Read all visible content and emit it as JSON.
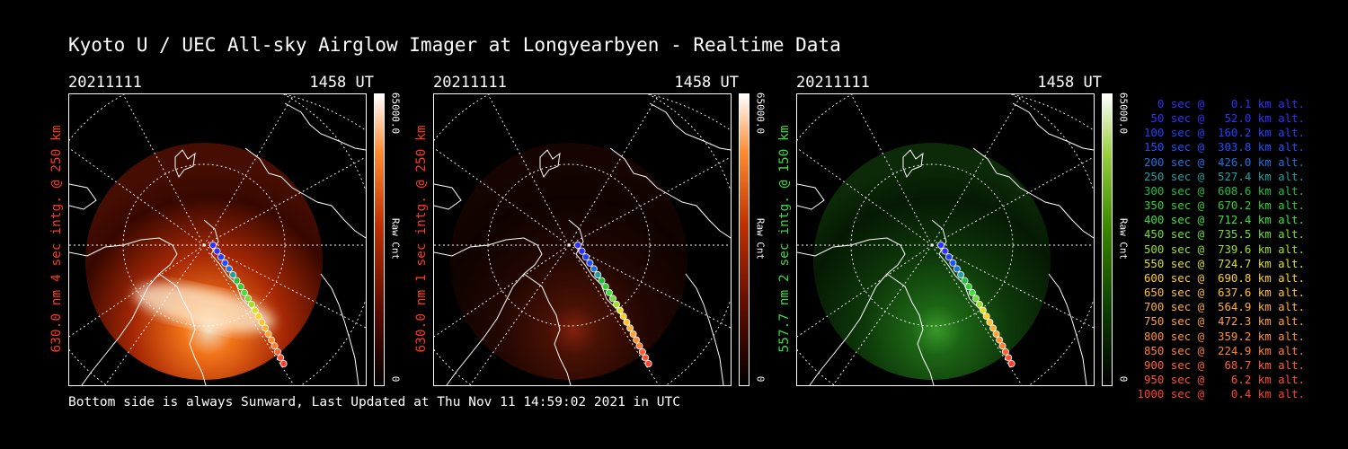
{
  "title": "Kyoto U / UEC All-sky Airglow Imager at Longyearbyen - Realtime Data",
  "footer": "Bottom side is always Sunward, Last Updated at Thu Nov 11 14:59:02 2021 in UTC",
  "panels": [
    {
      "date": "20211111",
      "time": "1458 UT",
      "side_label": "630.0 nm 4 sec intg. @ 250 km",
      "label_color": "#ff3a1a",
      "cbar_max": "65000.0",
      "cbar_unit": "Raw Cnt",
      "cbar_min": "0",
      "glow": "red"
    },
    {
      "date": "20211111",
      "time": "1458 UT",
      "side_label": "630.0 nm 1 sec intg. @ 250 km",
      "label_color": "#ff3a1a",
      "cbar_max": "65000.0",
      "cbar_unit": "Raw Cnt",
      "cbar_min": "0",
      "glow": "dimred"
    },
    {
      "date": "20211111",
      "time": "1458 UT",
      "side_label": "557.7 nm 2 sec intg. @ 150 km",
      "label_color": "#3cdc3c",
      "cbar_max": "65000.0",
      "cbar_unit": "Raw Cnt",
      "cbar_min": "0",
      "glow": "green"
    }
  ],
  "legend": [
    {
      "text": "   0 sec @    0.1 km alt.",
      "color": "#3030ff"
    },
    {
      "text": "  50 sec @   52.0 km alt.",
      "color": "#3030ff"
    },
    {
      "text": " 100 sec @  160.2 km alt.",
      "color": "#2040ff"
    },
    {
      "text": " 150 sec @  303.8 km alt.",
      "color": "#2050ff"
    },
    {
      "text": " 200 sec @  426.0 km alt.",
      "color": "#2070e0"
    },
    {
      "text": " 250 sec @  527.4 km alt.",
      "color": "#20a0a0"
    },
    {
      "text": " 300 sec @  608.6 km alt.",
      "color": "#20c040"
    },
    {
      "text": " 350 sec @  670.2 km alt.",
      "color": "#30d030"
    },
    {
      "text": " 400 sec @  712.4 km alt.",
      "color": "#40e040"
    },
    {
      "text": " 450 sec @  735.5 km alt.",
      "color": "#70e030"
    },
    {
      "text": " 500 sec @  739.6 km alt.",
      "color": "#a0e020"
    },
    {
      "text": " 550 sec @  724.7 km alt.",
      "color": "#e0e020"
    },
    {
      "text": " 600 sec @  690.8 km alt.",
      "color": "#ffd020"
    },
    {
      "text": " 650 sec @  637.6 km alt.",
      "color": "#ffc030"
    },
    {
      "text": " 700 sec @  564.9 km alt.",
      "color": "#ffb030"
    },
    {
      "text": " 750 sec @  472.3 km alt.",
      "color": "#ffa030"
    },
    {
      "text": " 800 sec @  359.2 km alt.",
      "color": "#ff9030"
    },
    {
      "text": " 850 sec @  224.9 km alt.",
      "color": "#ff8030"
    },
    {
      "text": " 900 sec @   68.7 km alt.",
      "color": "#ff6030"
    },
    {
      "text": " 950 sec @    6.2 km alt.",
      "color": "#ff5030"
    },
    {
      "text": "1000 sec @    0.4 km alt.",
      "color": "#ff4030"
    }
  ]
}
